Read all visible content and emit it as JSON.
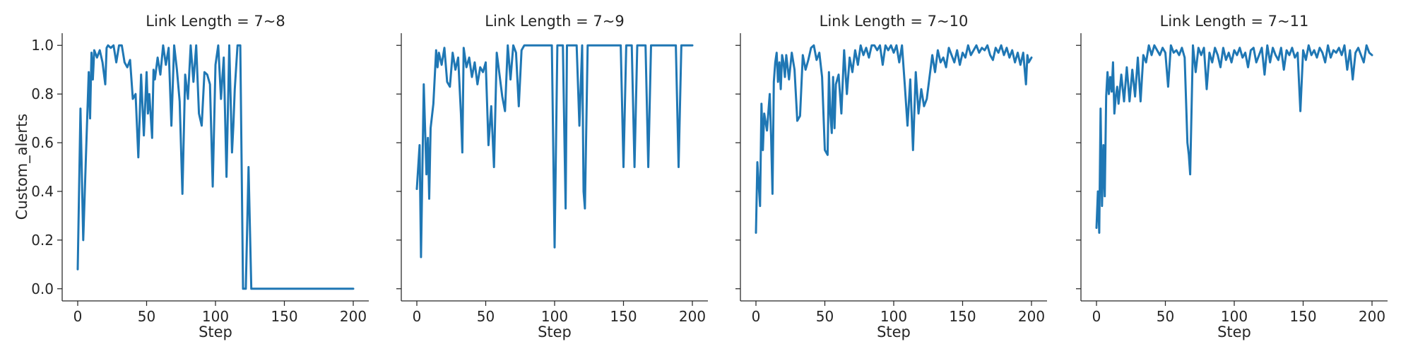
{
  "colors": {
    "series": "#1f77b4",
    "axis": "#262626",
    "background": "#ffffff"
  },
  "chart_data": {
    "type": "line",
    "layout": "facet-grid 1x4, shared y axis",
    "ylabel": "Custom_alerts",
    "xlabel": "Step",
    "xlim": [
      0,
      200
    ],
    "ylim": [
      -0.05,
      1.05
    ],
    "xticks": [
      0,
      50,
      100,
      150,
      200
    ],
    "yticks": [
      0.0,
      0.2,
      0.4,
      0.6,
      0.8,
      1.0
    ],
    "ytick_labels": [
      "0.0",
      "0.2",
      "0.4",
      "0.6",
      "0.8",
      "1.0"
    ],
    "grid": false,
    "panels": [
      {
        "title": "Link Length = 7~8",
        "x": [
          0,
          2,
          4,
          6,
          8,
          9,
          10,
          11,
          12,
          14,
          16,
          18,
          20,
          21,
          22,
          24,
          26,
          28,
          30,
          32,
          34,
          36,
          38,
          40,
          42,
          44,
          46,
          48,
          50,
          51,
          52,
          54,
          55,
          56,
          58,
          60,
          62,
          64,
          66,
          68,
          70,
          72,
          74,
          76,
          78,
          80,
          82,
          84,
          86,
          88,
          90,
          92,
          94,
          96,
          98,
          100,
          102,
          104,
          106,
          108,
          110,
          112,
          113,
          114,
          116,
          118,
          120,
          121,
          122,
          124,
          126,
          128,
          130,
          132,
          133,
          134,
          136,
          137,
          138,
          139,
          140,
          150,
          160,
          170,
          180,
          190,
          200
        ],
        "values": [
          0.08,
          0.74,
          0.2,
          0.55,
          0.89,
          0.7,
          0.97,
          0.86,
          0.98,
          0.95,
          0.98,
          0.93,
          0.84,
          0.99,
          1.0,
          0.99,
          1.0,
          0.93,
          1.0,
          1.0,
          0.93,
          0.91,
          0.94,
          0.78,
          0.8,
          0.54,
          0.88,
          0.63,
          0.89,
          0.72,
          0.8,
          0.62,
          0.9,
          0.86,
          0.95,
          0.88,
          1.0,
          0.92,
          0.99,
          0.67,
          1.0,
          0.9,
          0.77,
          0.39,
          0.88,
          0.78,
          1.0,
          0.85,
          1.0,
          0.72,
          0.67,
          0.89,
          0.88,
          0.84,
          0.42,
          0.92,
          1.0,
          0.78,
          0.95,
          0.46,
          1.0,
          0.56,
          0.67,
          0.82,
          1.0,
          1.0,
          0.0,
          0.0,
          0.0,
          0.5,
          0.0,
          0.0,
          0.0,
          0.0,
          0.0,
          0.0,
          0.0,
          0.0,
          0.0,
          0.0,
          0.0,
          0.0,
          0.0,
          0.0,
          0.0,
          0.0,
          0.0
        ]
      },
      {
        "title": "Link Length = 7~9",
        "x": [
          0,
          2,
          3,
          5,
          7,
          8,
          9,
          10,
          12,
          14,
          15,
          16,
          18,
          20,
          22,
          24,
          26,
          28,
          30,
          32,
          33,
          34,
          36,
          38,
          40,
          42,
          44,
          46,
          48,
          50,
          52,
          54,
          56,
          58,
          60,
          62,
          64,
          66,
          68,
          70,
          72,
          74,
          76,
          78,
          80,
          82,
          84,
          86,
          88,
          90,
          92,
          94,
          96,
          98,
          100,
          102,
          104,
          106,
          108,
          109,
          110,
          112,
          114,
          116,
          118,
          120,
          121,
          122,
          124,
          126,
          130,
          140,
          148,
          150,
          152,
          154,
          156,
          158,
          160,
          162,
          164,
          166,
          168,
          170,
          172,
          174,
          176,
          178,
          180,
          182,
          184,
          186,
          188,
          190,
          192,
          194,
          196,
          198,
          200
        ],
        "values": [
          0.41,
          0.59,
          0.13,
          0.84,
          0.47,
          0.62,
          0.37,
          0.66,
          0.76,
          0.98,
          0.91,
          0.97,
          0.92,
          0.99,
          0.85,
          0.83,
          0.97,
          0.9,
          0.95,
          0.72,
          0.56,
          0.99,
          0.91,
          0.95,
          0.87,
          0.93,
          0.84,
          0.91,
          0.89,
          0.93,
          0.59,
          0.75,
          0.5,
          0.97,
          0.88,
          0.79,
          0.73,
          1.0,
          0.86,
          1.0,
          0.97,
          0.75,
          0.98,
          1.0,
          1.0,
          1.0,
          1.0,
          1.0,
          1.0,
          1.0,
          1.0,
          1.0,
          1.0,
          1.0,
          0.17,
          1.0,
          1.0,
          1.0,
          0.33,
          1.0,
          1.0,
          1.0,
          1.0,
          1.0,
          0.67,
          1.0,
          0.4,
          0.33,
          1.0,
          1.0,
          1.0,
          1.0,
          1.0,
          0.5,
          1.0,
          1.0,
          1.0,
          0.5,
          1.0,
          1.0,
          1.0,
          1.0,
          0.5,
          1.0,
          1.0,
          1.0,
          1.0,
          1.0,
          1.0,
          1.0,
          1.0,
          1.0,
          1.0,
          0.5,
          1.0,
          1.0,
          1.0,
          1.0,
          1.0
        ]
      },
      {
        "title": "Link Length = 7~10",
        "x": [
          0,
          1,
          2,
          3,
          4,
          5,
          6,
          8,
          10,
          11,
          12,
          13,
          14,
          15,
          16,
          17,
          18,
          19,
          20,
          21,
          22,
          24,
          26,
          28,
          30,
          32,
          34,
          36,
          38,
          40,
          42,
          44,
          46,
          48,
          50,
          52,
          53,
          54,
          55,
          56,
          57,
          58,
          60,
          62,
          64,
          66,
          68,
          70,
          72,
          74,
          76,
          78,
          80,
          82,
          84,
          86,
          88,
          90,
          92,
          94,
          96,
          98,
          100,
          102,
          104,
          106,
          108,
          110,
          112,
          114,
          116,
          118,
          120,
          122,
          124,
          126,
          128,
          130,
          132,
          134,
          136,
          138,
          140,
          142,
          144,
          146,
          148,
          150,
          152,
          154,
          156,
          158,
          160,
          162,
          164,
          166,
          168,
          170,
          172,
          174,
          176,
          178,
          180,
          182,
          184,
          186,
          188,
          190,
          192,
          194,
          196,
          197,
          198,
          200
        ],
        "values": [
          0.23,
          0.52,
          0.43,
          0.34,
          0.76,
          0.57,
          0.72,
          0.65,
          0.8,
          0.62,
          0.39,
          0.85,
          0.93,
          0.97,
          0.85,
          0.93,
          0.82,
          0.96,
          0.93,
          0.87,
          0.96,
          0.86,
          0.97,
          0.9,
          0.69,
          0.71,
          0.96,
          0.9,
          0.94,
          0.99,
          1.0,
          0.94,
          0.97,
          0.87,
          0.57,
          0.55,
          0.89,
          0.72,
          0.64,
          0.87,
          0.66,
          0.84,
          0.88,
          0.72,
          0.98,
          0.8,
          0.95,
          0.89,
          0.98,
          0.92,
          1.0,
          0.96,
          0.99,
          0.95,
          1.0,
          1.0,
          0.98,
          1.0,
          0.92,
          1.0,
          0.98,
          1.0,
          0.97,
          1.0,
          0.93,
          1.0,
          0.84,
          0.67,
          0.86,
          0.57,
          0.89,
          0.72,
          0.82,
          0.75,
          0.78,
          0.87,
          0.96,
          0.89,
          0.98,
          0.93,
          0.95,
          0.91,
          0.99,
          0.96,
          0.93,
          0.98,
          0.92,
          0.97,
          0.95,
          1.0,
          0.96,
          0.98,
          1.0,
          0.97,
          0.99,
          0.98,
          1.0,
          0.96,
          0.94,
          0.99,
          0.97,
          1.0,
          0.96,
          0.99,
          0.95,
          0.98,
          0.93,
          0.97,
          0.92,
          0.97,
          0.84,
          0.96,
          0.93,
          0.95
        ]
      },
      {
        "title": "Link Length = 7~11",
        "x": [
          0,
          1,
          2,
          3,
          4,
          5,
          6,
          7,
          8,
          9,
          10,
          11,
          12,
          13,
          14,
          15,
          16,
          18,
          20,
          22,
          24,
          26,
          28,
          30,
          32,
          34,
          36,
          38,
          40,
          42,
          44,
          46,
          48,
          50,
          52,
          54,
          56,
          58,
          60,
          62,
          64,
          66,
          67,
          68,
          70,
          72,
          74,
          76,
          78,
          80,
          82,
          84,
          86,
          88,
          90,
          92,
          94,
          96,
          98,
          100,
          102,
          104,
          106,
          108,
          110,
          112,
          114,
          116,
          118,
          120,
          122,
          124,
          126,
          128,
          130,
          132,
          134,
          136,
          138,
          140,
          142,
          144,
          146,
          148,
          150,
          152,
          154,
          156,
          158,
          160,
          162,
          164,
          166,
          168,
          170,
          172,
          174,
          176,
          178,
          180,
          182,
          184,
          186,
          188,
          190,
          192,
          194,
          196,
          198,
          200
        ],
        "values": [
          0.25,
          0.4,
          0.23,
          0.74,
          0.34,
          0.59,
          0.38,
          0.79,
          0.89,
          0.8,
          0.87,
          0.81,
          0.93,
          0.72,
          0.79,
          0.83,
          0.76,
          0.88,
          0.77,
          0.91,
          0.77,
          0.9,
          0.79,
          0.95,
          0.77,
          0.96,
          0.93,
          1.0,
          0.96,
          1.0,
          0.98,
          0.96,
          0.99,
          0.97,
          0.83,
          1.0,
          0.97,
          0.98,
          0.96,
          0.99,
          0.95,
          0.6,
          0.55,
          0.47,
          1.0,
          0.89,
          0.99,
          0.96,
          0.99,
          0.82,
          0.97,
          0.93,
          0.99,
          0.96,
          0.91,
          0.99,
          0.94,
          0.97,
          0.93,
          0.98,
          0.96,
          0.99,
          0.95,
          0.97,
          0.91,
          0.98,
          0.99,
          0.93,
          0.96,
          0.99,
          0.88,
          1.0,
          0.93,
          0.99,
          0.96,
          0.94,
          0.99,
          0.9,
          0.98,
          0.96,
          0.99,
          0.95,
          0.97,
          0.73,
          0.98,
          0.94,
          1.0,
          0.96,
          0.98,
          0.95,
          0.99,
          0.97,
          0.93,
          1.0,
          0.95,
          0.98,
          0.97,
          0.99,
          0.96,
          1.0,
          0.9,
          0.98,
          0.86,
          0.97,
          0.99,
          0.96,
          0.93,
          1.0,
          0.97,
          0.96
        ]
      }
    ]
  }
}
